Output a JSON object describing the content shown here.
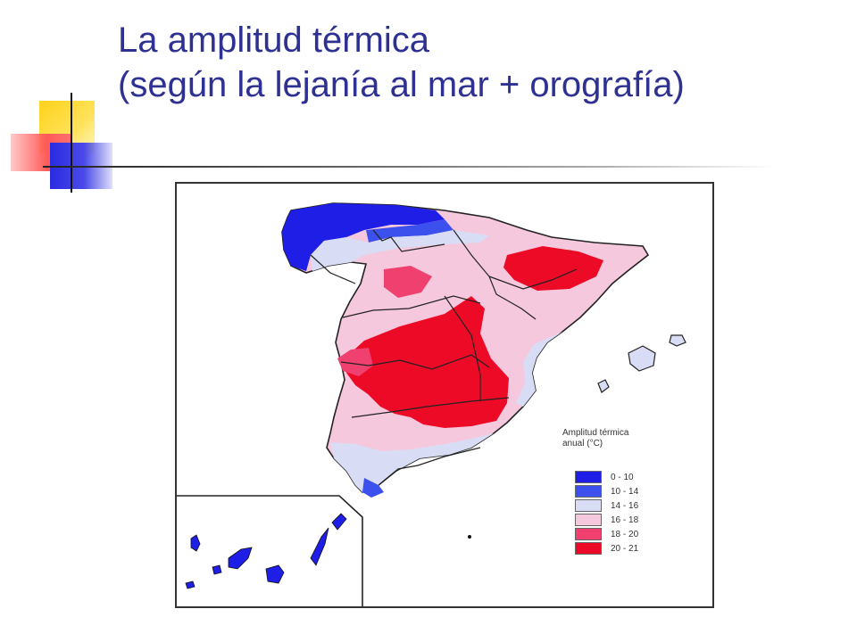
{
  "slide": {
    "title_line1": "La amplitud térmica",
    "title_line2": "(según la lejanía al mar + orografía)"
  },
  "map": {
    "region": "Spain",
    "legend": {
      "title_line1": "Amplitud térmica",
      "title_line2": "anual (°C)",
      "items": [
        {
          "label": "0 - 10",
          "color": "#1e1ee6"
        },
        {
          "label": "10 - 14",
          "color": "#3c50ee"
        },
        {
          "label": "14 - 16",
          "color": "#d8dcf4"
        },
        {
          "label": "16 - 18",
          "color": "#f6c8de"
        },
        {
          "label": "18 - 20",
          "color": "#f04070"
        },
        {
          "label": "20 - 21",
          "color": "#ec0a26"
        }
      ]
    }
  }
}
